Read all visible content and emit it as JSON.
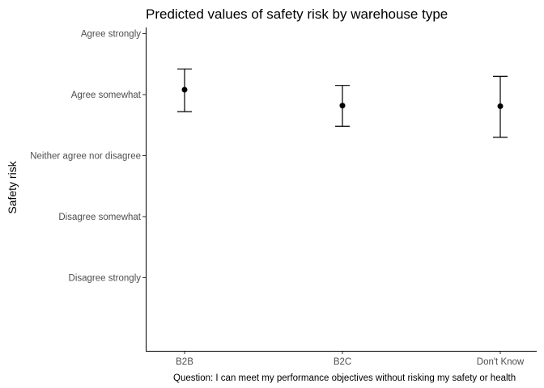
{
  "chart_data": {
    "type": "scatter",
    "title": "Predicted values of safety risk by warehouse type",
    "ylabel": "Safety risk",
    "caption": "Question: I can meet my performance objectives without risking my safety or health",
    "categories": [
      "B2B",
      "B2C",
      "Don't Know"
    ],
    "y_tick_values": [
      1,
      2,
      3,
      4,
      5
    ],
    "y_tick_labels": [
      "Disagree strongly",
      "Disagree somewhat",
      "Neither agree nor disagree",
      "Agree somewhat",
      "Agree strongly"
    ],
    "ylim": [
      -0.2,
      5.1
    ],
    "points": [
      {
        "category": "B2B",
        "value": 4.08,
        "ci_low": 3.72,
        "ci_high": 4.42
      },
      {
        "category": "B2C",
        "value": 3.82,
        "ci_low": 3.48,
        "ci_high": 4.15
      },
      {
        "category": "Don't Know",
        "value": 3.81,
        "ci_low": 3.3,
        "ci_high": 4.3
      }
    ],
    "grid": false,
    "legend": "none"
  }
}
